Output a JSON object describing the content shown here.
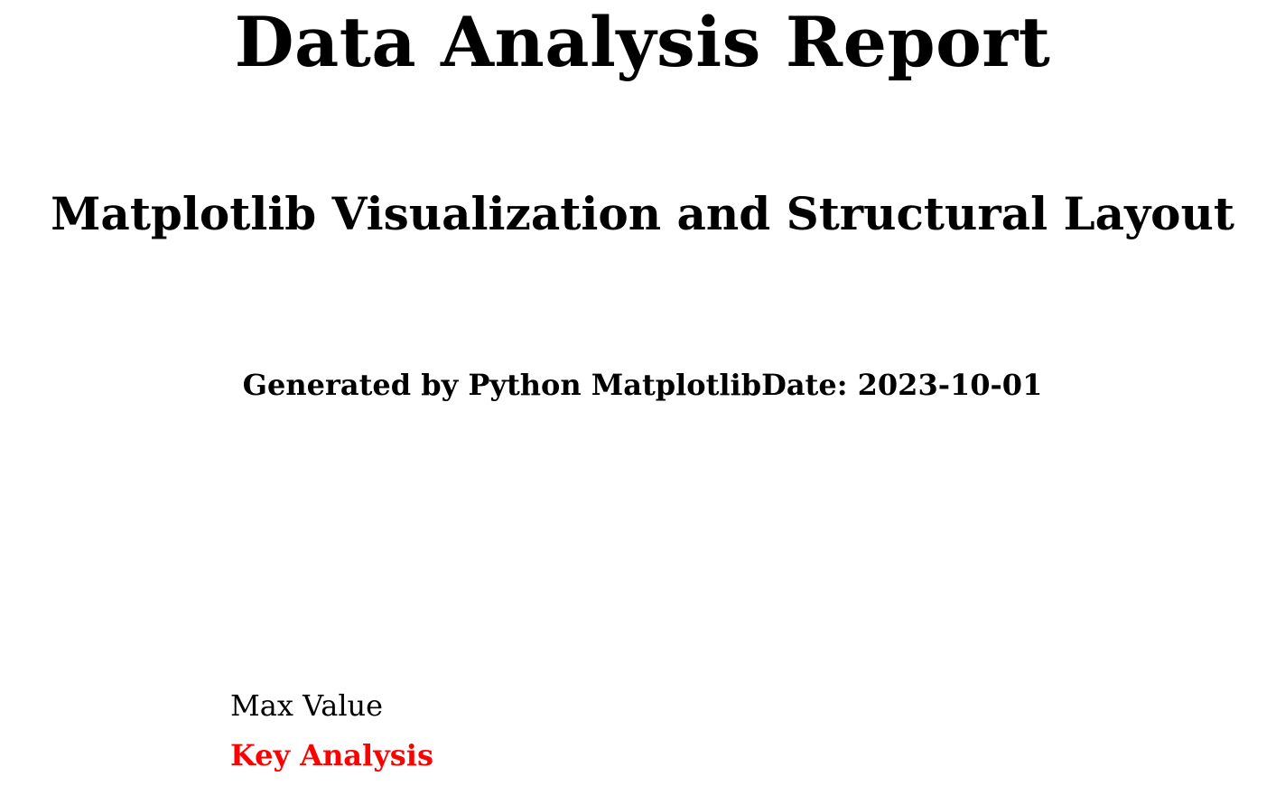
{
  "document": {
    "title": "Data Analysis Report",
    "subtitle": "Matplotlib Visualization and Structural Layout",
    "meta": "Generated by Python MatplotlibDate: 2023-10-01"
  },
  "annotations": {
    "max_value_label": "Max Value",
    "key_analysis_label": "Key Analysis",
    "key_analysis_color": "#ff0000"
  }
}
